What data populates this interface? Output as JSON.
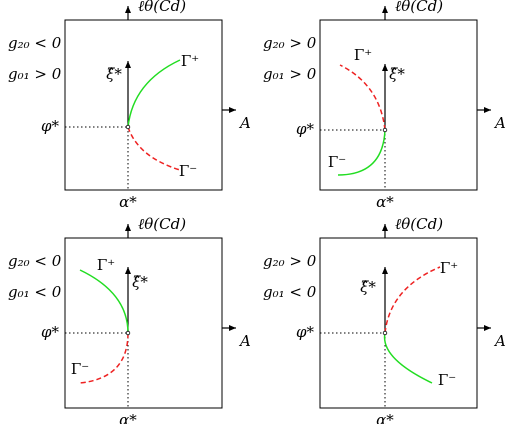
{
  "panels": [
    {
      "condition_1": "g₂₀ < 0",
      "condition_2": "g₀₁ > 0",
      "vertical_axis": "ℓθ(Cd)",
      "horizontal_axis": "A",
      "phi": "φ*",
      "alpha": "α*",
      "xi": "ξ̂*",
      "gamma_plus": "Γ⁺",
      "gamma_minus": "Γ⁻"
    },
    {
      "condition_1": "g₂₀ > 0",
      "condition_2": "g₀₁ > 0",
      "vertical_axis": "ℓθ(Cd)",
      "horizontal_axis": "A",
      "phi": "φ*",
      "alpha": "α*",
      "xi": "ξ̂*",
      "gamma_plus": "Γ⁺",
      "gamma_minus": "Γ⁻"
    },
    {
      "condition_1": "g₂₀ < 0",
      "condition_2": "g₀₁ < 0",
      "vertical_axis": "ℓθ(Cd)",
      "horizontal_axis": "A",
      "phi": "φ*",
      "alpha": "α*",
      "xi": "ξ̂*",
      "gamma_plus": "Γ⁺",
      "gamma_minus": "Γ⁻"
    },
    {
      "condition_1": "g₂₀ > 0",
      "condition_2": "g₀₁ < 0",
      "vertical_axis": "ℓθ(Cd)",
      "horizontal_axis": "A",
      "phi": "φ*",
      "alpha": "α*",
      "xi": "ξ̂*",
      "gamma_plus": "Γ⁺",
      "gamma_minus": "Γ⁻"
    }
  ]
}
